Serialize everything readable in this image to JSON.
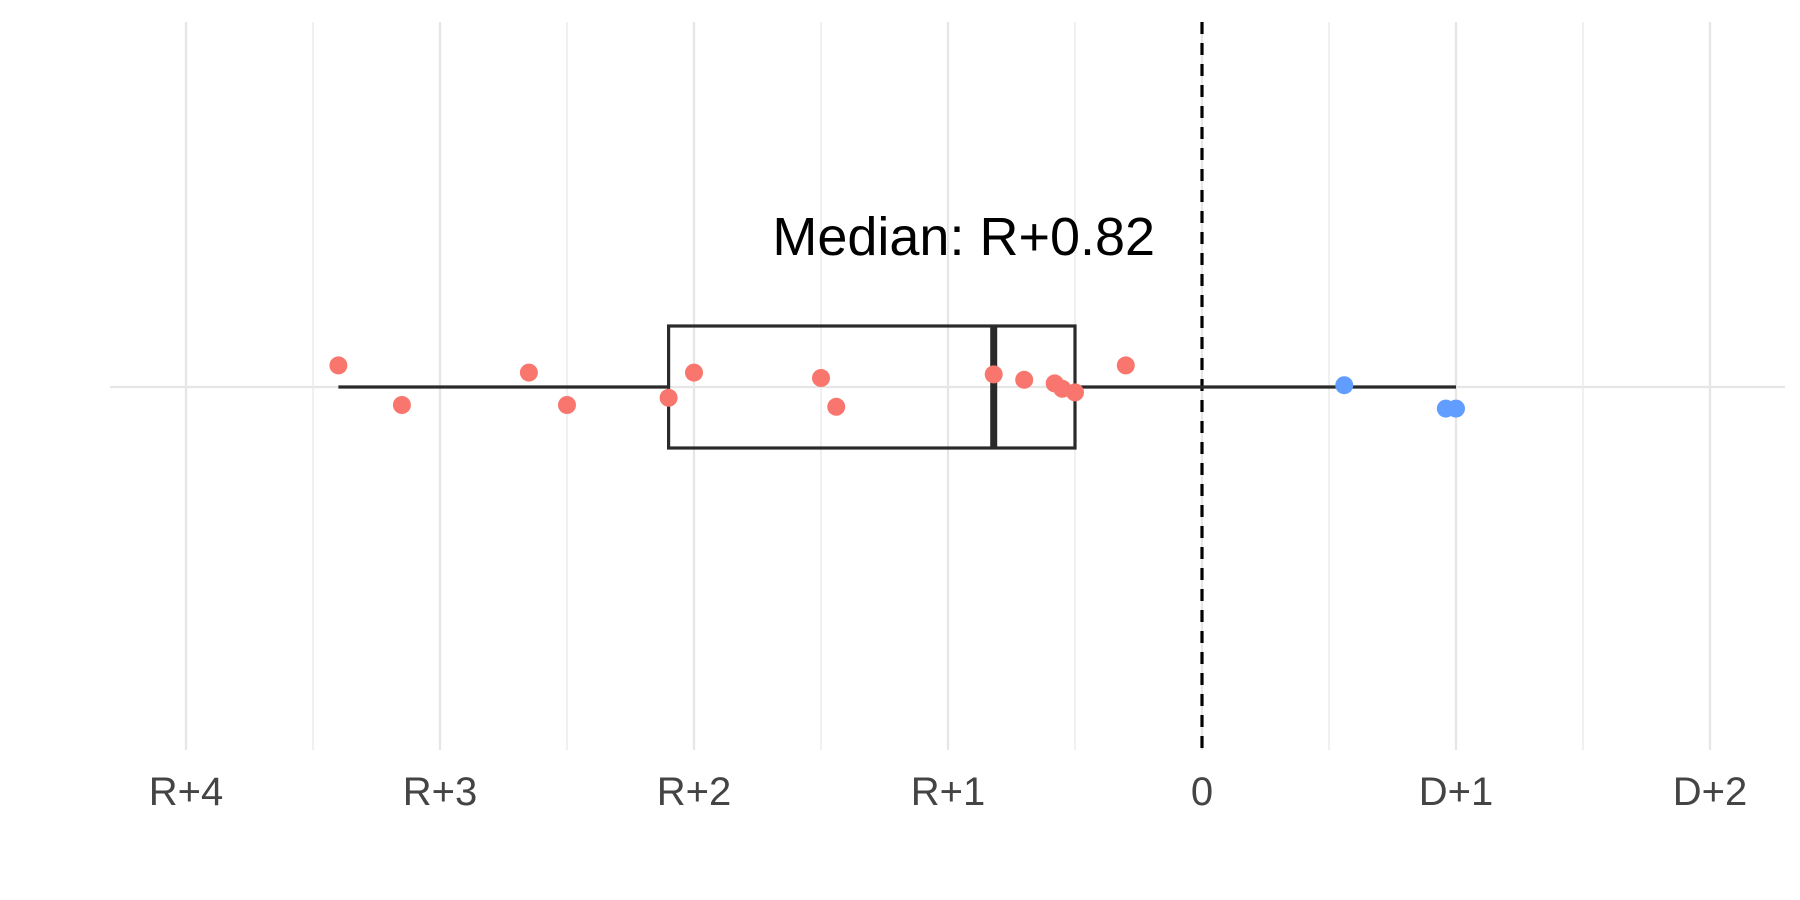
{
  "chart_data": {
    "type": "box",
    "title": "",
    "xlabel": "",
    "ylabel": "",
    "xlim": [
      -4.3,
      2.3
    ],
    "annotation": "Median: R+0.82",
    "x_ticks": [
      {
        "value": -4,
        "label": "R+4"
      },
      {
        "value": -3,
        "label": "R+3"
      },
      {
        "value": -2,
        "label": "R+2"
      },
      {
        "value": -1,
        "label": "R+1"
      },
      {
        "value": 0,
        "label": "0"
      },
      {
        "value": 1,
        "label": "D+1"
      },
      {
        "value": 2,
        "label": "D+2"
      }
    ],
    "minor_ticks": [
      -3.5,
      -2.5,
      -1.5,
      -0.5,
      0.5,
      1.5
    ],
    "reference_line": {
      "value": 0,
      "style": "dashed"
    },
    "box": {
      "min": -3.4,
      "q1": -2.1,
      "median": -0.82,
      "q3": -0.5,
      "max": 1.0
    },
    "points": [
      {
        "x": -3.4,
        "jitter": 0.12,
        "party": "R"
      },
      {
        "x": -3.15,
        "jitter": -0.1,
        "party": "R"
      },
      {
        "x": -2.65,
        "jitter": 0.08,
        "party": "R"
      },
      {
        "x": -2.5,
        "jitter": -0.1,
        "party": "R"
      },
      {
        "x": -2.1,
        "jitter": -0.06,
        "party": "R"
      },
      {
        "x": -2.0,
        "jitter": 0.08,
        "party": "R"
      },
      {
        "x": -1.5,
        "jitter": 0.05,
        "party": "R"
      },
      {
        "x": -1.44,
        "jitter": -0.11,
        "party": "R"
      },
      {
        "x": -0.82,
        "jitter": 0.07,
        "party": "R"
      },
      {
        "x": -0.7,
        "jitter": 0.04,
        "party": "R"
      },
      {
        "x": -0.58,
        "jitter": 0.02,
        "party": "R"
      },
      {
        "x": -0.55,
        "jitter": -0.01,
        "party": "R"
      },
      {
        "x": -0.5,
        "jitter": -0.03,
        "party": "R"
      },
      {
        "x": -0.3,
        "jitter": 0.12,
        "party": "R"
      },
      {
        "x": 0.56,
        "jitter": 0.01,
        "party": "D"
      },
      {
        "x": 0.96,
        "jitter": -0.12,
        "party": "D"
      },
      {
        "x": 1.0,
        "jitter": -0.12,
        "party": "D"
      }
    ],
    "colors": {
      "R": "#f8766d",
      "D": "#619cff"
    }
  }
}
